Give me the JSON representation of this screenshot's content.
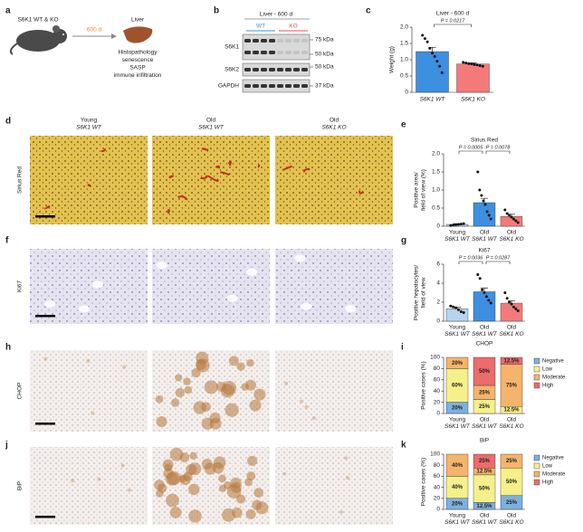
{
  "panel_labels": [
    "a",
    "b",
    "c",
    "d",
    "e",
    "f",
    "g",
    "h",
    "i",
    "j",
    "k"
  ],
  "schematic": {
    "mouse": "S6K1 WT & KO",
    "duration": "600 d",
    "organ": "Liver",
    "readouts": [
      "Histopathology",
      "senescence",
      "SASP",
      "immune infiltration"
    ]
  },
  "blot": {
    "title": "Liver - 600 d",
    "groups": [
      "WT",
      "KO"
    ],
    "group_colors": [
      "#3d8fe0",
      "#e8504f"
    ],
    "rows": [
      "S6K1",
      "S6K2",
      "GAPDH"
    ],
    "markers": [
      "75 kDa",
      "50 kDa",
      "50 kDa",
      "37 kDa"
    ]
  },
  "histology": {
    "columns": [
      [
        "Young",
        "S6K1 WT"
      ],
      [
        "Old",
        "S6K1 WT"
      ],
      [
        "Old",
        "S6K1 KO"
      ]
    ],
    "rows": [
      "Sirius Red",
      "Ki67",
      "CHOP",
      "BiP"
    ]
  },
  "chart_data": [
    {
      "type": "bar",
      "title": "Liver - 600 d",
      "ylabel": [
        "Weight (g)"
      ],
      "categories": [
        "S6K1 WT",
        "S6K1 KO"
      ],
      "colors": [
        "#3d8fe0",
        "#f47a7a"
      ],
      "values": [
        1.25,
        0.87
      ],
      "errors": [
        0.13,
        0.03
      ],
      "points": [
        [
          1.75,
          1.65,
          1.55,
          1.35,
          1.2,
          1.1,
          0.95,
          0.8,
          0.6
        ],
        [
          0.92,
          0.9,
          0.88,
          0.87,
          0.85,
          0.84,
          0.82,
          0.8
        ]
      ],
      "p_values": [
        "P = 0.0217"
      ],
      "ylim": [
        0,
        2
      ],
      "yticks": [
        0,
        0.5,
        {
          "value": 1,
          "label": "1.0"
        },
        1.5,
        {
          "value": 2,
          "label": "2.0"
        }
      ]
    },
    {
      "type": "bar",
      "title": "Sirius Red",
      "ylabel": [
        "Positive area/",
        "field of view (%)"
      ],
      "categories": [
        [
          "Young",
          "S6K1 WT"
        ],
        [
          "Old",
          "S6K1 WT"
        ],
        [
          "Old",
          "S6K1 KO"
        ]
      ],
      "colors": [
        "#b7d3f2",
        "#3d8fe0",
        "#f47a7a"
      ],
      "values": [
        0.05,
        0.65,
        0.27
      ],
      "errors": [
        0.02,
        0.12,
        0.06
      ],
      "points": [
        [
          0.02,
          0.03,
          0.04,
          0.05,
          0.06,
          0.07
        ],
        [
          1.5,
          1.0,
          0.85,
          0.7,
          0.6,
          0.4,
          0.3,
          0.2
        ],
        [
          0.45,
          0.35,
          0.3,
          0.25,
          0.2,
          0.15,
          0.1
        ]
      ],
      "p_values": [
        "P = 0.0005",
        "P = 0.0078"
      ],
      "ylim": [
        0,
        2
      ],
      "yticks": [
        0,
        0.5,
        {
          "value": 1,
          "label": "1.0"
        },
        1.5,
        {
          "value": 2,
          "label": "2.0"
        }
      ]
    },
    {
      "type": "bar",
      "title": "Ki67",
      "ylabel": [
        "Positive hepatocytes/",
        "field of view"
      ],
      "categories": [
        [
          "Young",
          "S6K1 WT"
        ],
        [
          "Old",
          "S6K1 WT"
        ],
        [
          "Old",
          "S6K1 KO"
        ]
      ],
      "colors": [
        "#b7d3f2",
        "#3d8fe0",
        "#f47a7a"
      ],
      "values": [
        1.3,
        3.1,
        1.9
      ],
      "errors": [
        0.15,
        0.4,
        0.25
      ],
      "points": [
        [
          1.6,
          1.5,
          1.4,
          1.2,
          1.0,
          0.9
        ],
        [
          4.9,
          4.5,
          3.3,
          3.0,
          2.6,
          2.2,
          1.9
        ],
        [
          3.0,
          2.4,
          2.0,
          1.8,
          1.5,
          1.3,
          1.1
        ]
      ],
      "p_values": [
        "P = 0.0036",
        "P = 0.0287"
      ],
      "ylim": [
        0,
        6
      ],
      "yticks": [
        0,
        2,
        4,
        6
      ]
    },
    {
      "type": "stacked_bar",
      "title": "CHOP",
      "ylabel": [
        "Positive cases (%)"
      ],
      "categories": [
        [
          "Young",
          "S6K1 WT"
        ],
        [
          "Old",
          "S6K1 WT"
        ],
        [
          "Old",
          "S6K1 KO"
        ]
      ],
      "series": [
        {
          "name": "Negative",
          "color": "#7bb0e0",
          "values": [
            20,
            0,
            0
          ],
          "value_labels": [
            "20%",
            null,
            null
          ]
        },
        {
          "name": "Low",
          "color": "#f5f08a",
          "values": [
            60,
            25,
            12.5
          ],
          "value_labels": [
            "60%",
            "25%",
            "12.5%"
          ]
        },
        {
          "name": "Moderate",
          "color": "#f5b46b",
          "values": [
            20,
            25,
            75
          ],
          "value_labels": [
            "20%",
            "25%",
            "75%"
          ]
        },
        {
          "name": "High",
          "color": "#ec6b6b",
          "values": [
            0,
            50,
            12.5
          ],
          "value_labels": [
            null,
            "50%",
            "12.5%"
          ]
        }
      ],
      "ylim": [
        0,
        100
      ],
      "yticks": [
        0,
        20,
        40,
        60,
        80,
        100
      ]
    },
    {
      "type": "stacked_bar",
      "title": "BiP",
      "ylabel": [
        "Positive cases (%)"
      ],
      "categories": [
        [
          "Young",
          "S6K1 WT"
        ],
        [
          "Old",
          "S6K1 WT"
        ],
        [
          "Old",
          "S6K1 KO"
        ]
      ],
      "series": [
        {
          "name": "Negative",
          "color": "#7bb0e0",
          "values": [
            20,
            12.5,
            25
          ],
          "value_labels": [
            "20%",
            "12.5%",
            "25%"
          ]
        },
        {
          "name": "Low",
          "color": "#f5f08a",
          "values": [
            40,
            50,
            50
          ],
          "value_labels": [
            "40%",
            "50%",
            "50%"
          ]
        },
        {
          "name": "Moderate",
          "color": "#f5b46b",
          "values": [
            40,
            12.5,
            25
          ],
          "value_labels": [
            "40%",
            "12.5%",
            "25%"
          ]
        },
        {
          "name": "High",
          "color": "#ec6b6b",
          "values": [
            0,
            25,
            0
          ],
          "value_labels": [
            null,
            "25%",
            null
          ]
        }
      ],
      "ylim": [
        0,
        100
      ],
      "yticks": [
        0,
        20,
        40,
        60,
        80,
        100
      ]
    }
  ]
}
